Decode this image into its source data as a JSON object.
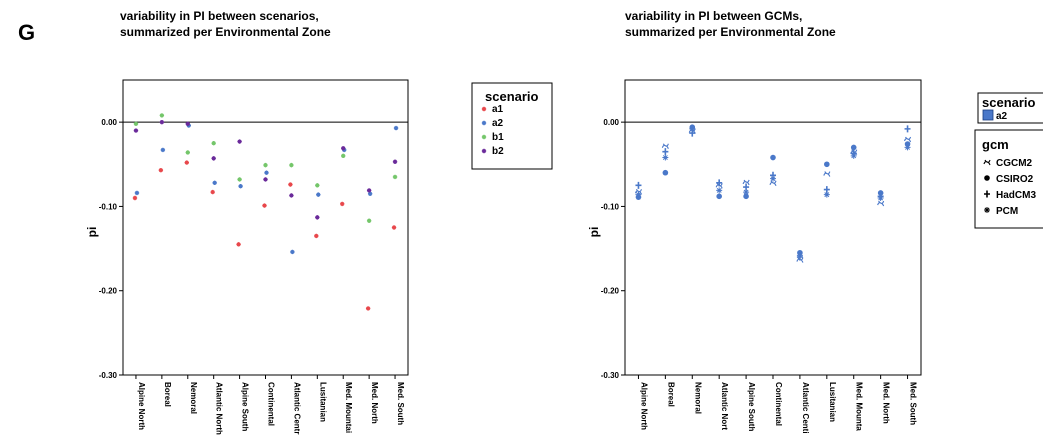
{
  "panel_letter": "G",
  "colors": {
    "a1": "#e8474b",
    "a2": "#4a78c9",
    "b1": "#74c66a",
    "b2": "#6a2a9a",
    "axis": "#000000"
  },
  "chart_data": [
    {
      "type": "scatter",
      "title": "variability in PI between scenarios,",
      "subtitle": "summarized per Environmental Zone",
      "xlabel": "",
      "ylabel": "pi",
      "ylim": [
        -0.3,
        0.05
      ],
      "yticks": [
        "0.00",
        "-0.10",
        "-0.20",
        "-0.30"
      ],
      "ytick_values": [
        0.0,
        -0.1,
        -0.2,
        -0.3
      ],
      "reference_line": 0.0,
      "grid": false,
      "categories": [
        "Alpine North",
        "Boreal",
        "Nemoral",
        "Atlantic North",
        "Alpine South",
        "Continental",
        "Atlantic Centr",
        "Lusitanian",
        "Med. Mountai",
        "Med. North",
        "Med. South"
      ],
      "legend": {
        "title": "scenario",
        "placement": "right"
      },
      "series": [
        {
          "name": "a1",
          "color": "#e8474b",
          "values": [
            -0.09,
            -0.057,
            -0.048,
            -0.083,
            -0.145,
            -0.099,
            -0.074,
            -0.135,
            -0.097,
            -0.221,
            -0.125
          ]
        },
        {
          "name": "a2",
          "color": "#4a78c9",
          "values": [
            -0.084,
            -0.033,
            -0.004,
            -0.072,
            -0.076,
            -0.06,
            -0.154,
            -0.086,
            -0.033,
            -0.085,
            -0.007
          ]
        },
        {
          "name": "b1",
          "color": "#74c66a",
          "values": [
            -0.002,
            0.008,
            -0.036,
            -0.025,
            -0.068,
            -0.051,
            -0.051,
            -0.075,
            -0.04,
            -0.117,
            -0.065
          ]
        },
        {
          "name": "b2",
          "color": "#6a2a9a",
          "values": [
            -0.01,
            0.0,
            -0.002,
            -0.043,
            -0.023,
            -0.068,
            -0.087,
            -0.113,
            -0.031,
            -0.081,
            -0.047
          ]
        }
      ]
    },
    {
      "type": "scatter",
      "title": "variability in PI between GCMs,",
      "subtitle": "summarized per Environmental Zone",
      "xlabel": "",
      "ylabel": "pi",
      "ylim": [
        -0.3,
        0.05
      ],
      "yticks": [
        "0.00",
        "-0.10",
        "-0.20",
        "-0.30"
      ],
      "ytick_values": [
        0.0,
        -0.1,
        -0.2,
        -0.3
      ],
      "reference_line": 0.0,
      "grid": false,
      "categories": [
        "Alpine North",
        "Boreal",
        "Nemoral",
        "Atlantic Nort",
        "Alpine South",
        "Continental",
        "Atlantic Centi",
        "Lusitanian",
        "Med. Mounta",
        "Med. North",
        "Med. South"
      ],
      "legend": {
        "title": "scenario",
        "items": [
          "a2"
        ],
        "gcm_title": "gcm",
        "gcm_items": [
          "CGCM2",
          "CSIRO2",
          "HadCM3",
          "PCM"
        ],
        "placement": "right"
      },
      "series": [
        {
          "name": "CGCM2",
          "color": "#4a78c9",
          "values": [
            -0.082,
            -0.028,
            -0.01,
            -0.075,
            -0.071,
            -0.072,
            -0.163,
            -0.061,
            -0.035,
            -0.096,
            -0.02
          ]
        },
        {
          "name": "CSIRO2",
          "color": "#4a78c9",
          "values": [
            -0.089,
            -0.06,
            -0.006,
            -0.088,
            -0.088,
            -0.042,
            -0.155,
            -0.05,
            -0.03,
            -0.084,
            -0.026
          ]
        },
        {
          "name": "HadCM3",
          "color": "#4a78c9",
          "values": [
            -0.075,
            -0.035,
            -0.013,
            -0.072,
            -0.077,
            -0.063,
            -0.16,
            -0.08,
            -0.037,
            -0.088,
            -0.008
          ]
        },
        {
          "name": "PCM",
          "color": "#4a78c9",
          "values": [
            -0.086,
            -0.042,
            -0.008,
            -0.081,
            -0.083,
            -0.067,
            -0.158,
            -0.086,
            -0.04,
            -0.09,
            -0.03
          ]
        }
      ]
    }
  ]
}
